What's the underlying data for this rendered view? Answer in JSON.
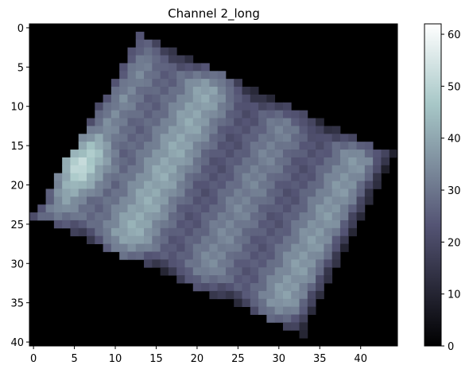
{
  "chart_data": {
    "type": "heatmap",
    "title": "Channel 2_long",
    "xlabel": "",
    "ylabel": "",
    "colormap": "bone",
    "x_ticks": [
      0,
      5,
      10,
      15,
      20,
      25,
      30,
      35,
      40
    ],
    "y_ticks": [
      0,
      5,
      10,
      15,
      20,
      25,
      30,
      35,
      40
    ],
    "xlim": [
      -0.5,
      44.5
    ],
    "ylim": [
      40.5,
      -0.5
    ],
    "colorbar": {
      "ticks": [
        0,
        10,
        20,
        30,
        40,
        50,
        60
      ],
      "range": [
        0,
        62
      ]
    },
    "grid": false,
    "grid_size": {
      "cols": 45,
      "rows": 41
    },
    "image_summary": {
      "background_value": 0,
      "region_corners": [
        [
          13,
          1
        ],
        [
          44,
          16
        ],
        [
          33,
          39
        ],
        [
          0,
          24
        ]
      ],
      "max_value": 62,
      "max_location": [
        5,
        17
      ],
      "stripe_direction": "diagonal bright bands running from upper-left to lower-right edge",
      "typical_range": [
        18,
        55
      ]
    }
  }
}
